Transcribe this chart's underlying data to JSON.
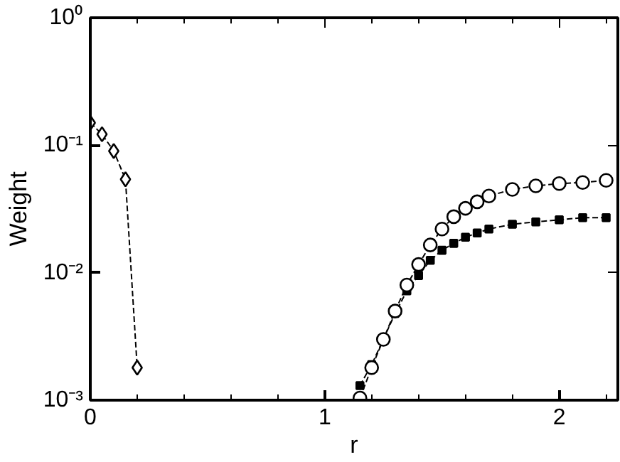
{
  "chart_data": {
    "type": "line",
    "xlabel": "r",
    "ylabel": "Weight",
    "log": "y",
    "grid": false,
    "line_style": "dashed",
    "xlim": [
      0,
      2.25
    ],
    "xticks": [
      0,
      1,
      2
    ],
    "ylim": [
      0.001,
      1
    ],
    "yticks": [
      {
        "value": 0.001,
        "label": "10⁻³"
      },
      {
        "value": 0.01,
        "label": "10⁻²"
      },
      {
        "value": 0.1,
        "label": "10⁻¹"
      },
      {
        "value": 1,
        "label": "10⁰"
      }
    ],
    "series": [
      {
        "color": "#000000",
        "marker": "diamond",
        "x": [
          0,
          0.05,
          0.1,
          0.15,
          0.2
        ],
        "values": [
          0.15,
          0.122,
          0.09,
          0.054,
          0.0018
        ]
      },
      {
        "color": "#000000",
        "marker": "square",
        "x": [
          1.15,
          1.2,
          1.25,
          1.3,
          1.35,
          1.4,
          1.45,
          1.5,
          1.55,
          1.6,
          1.65,
          1.7,
          1.8,
          1.9,
          2.0,
          2.1,
          2.2
        ],
        "values": [
          0.0013,
          0.0019,
          0.003,
          0.0048,
          0.0072,
          0.0095,
          0.0125,
          0.015,
          0.017,
          0.019,
          0.0205,
          0.022,
          0.024,
          0.025,
          0.026,
          0.027,
          0.027
        ]
      },
      {
        "color": "#000000",
        "marker": "circle",
        "x": [
          1.15,
          1.2,
          1.25,
          1.3,
          1.35,
          1.4,
          1.45,
          1.5,
          1.55,
          1.6,
          1.65,
          1.7,
          1.8,
          1.9,
          2.0,
          2.1,
          2.2
        ],
        "values": [
          0.00104,
          0.0018,
          0.003,
          0.005,
          0.008,
          0.0116,
          0.0165,
          0.022,
          0.0275,
          0.032,
          0.036,
          0.04,
          0.045,
          0.048,
          0.05,
          0.051,
          0.053
        ]
      }
    ]
  }
}
